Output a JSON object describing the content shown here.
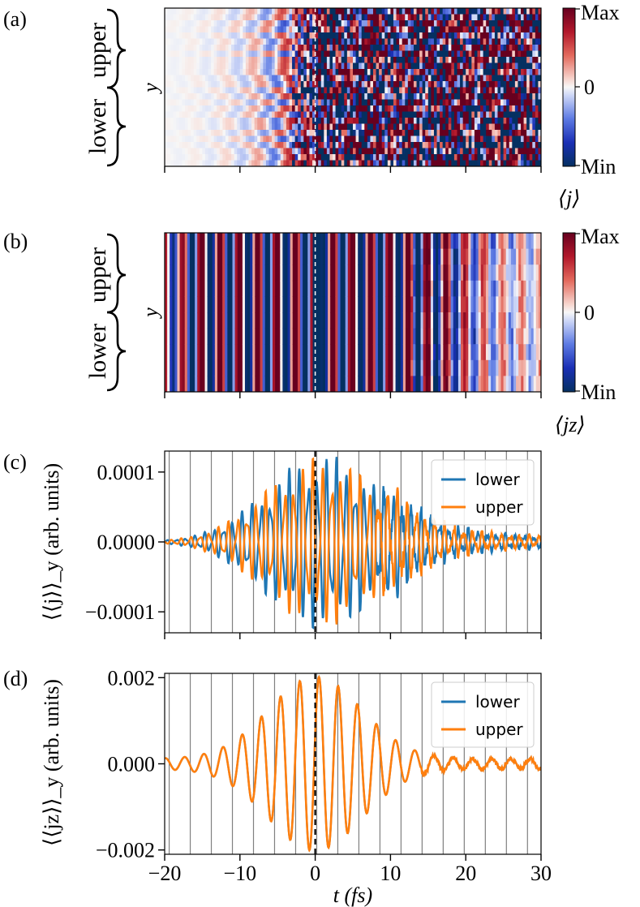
{
  "panel_labels": [
    "(a)",
    "(b)",
    "(c)",
    "(d)"
  ],
  "colors": {
    "lower": "#1f77b4",
    "upper": "#ff7f0e",
    "cmap_max": "#67001f",
    "cmap_mid": "#f7f7f7",
    "cmap_min": "#053061",
    "grid": "#808080"
  },
  "heatmap_a": {
    "ylabel": "y",
    "brace_upper": "upper",
    "brace_lower": "lower",
    "colorbar": {
      "max": "Max",
      "mid": "0",
      "min": "Min",
      "label": "⟨j⟩"
    }
  },
  "heatmap_b": {
    "ylabel": "y",
    "brace_upper": "upper",
    "brace_lower": "lower",
    "colorbar": {
      "max": "Max",
      "mid": "0",
      "min": "Min",
      "label": "⟨jz⟩"
    }
  },
  "chart_data": [
    {
      "type": "heatmap",
      "panel": "(a)",
      "description": "Current density <j> vs time (x) and y-position; weak before t=0, strong random-sign stripes after t=0",
      "xlim": [
        -20,
        30
      ],
      "x_ticks": [
        -20,
        -10,
        0,
        10,
        20,
        30
      ],
      "value_range": [
        "Min",
        "Max"
      ],
      "marker_line_x": 0
    },
    {
      "type": "heatmap",
      "panel": "(b)",
      "description": "Spin current <j^z> vs time and y; uniform vertical stripes oscillating in time, decaying after ~15 fs",
      "xlim": [
        -20,
        30
      ],
      "x_ticks": [
        -20,
        -10,
        0,
        10,
        20,
        30
      ],
      "value_range": [
        "Min",
        "Max"
      ],
      "marker_line_x": 0
    },
    {
      "type": "line",
      "panel": "(c)",
      "ylabel": "⟨⟨j⟩⟩_y (arb. units)",
      "xlim": [
        -20,
        30
      ],
      "ylim": [
        -0.00013,
        0.00013
      ],
      "y_ticks": [
        0.0001,
        0.0,
        -0.0001
      ],
      "y_tick_labels": [
        "0.0001",
        "0.0000",
        "−0.0001"
      ],
      "x_ticks": [
        -20,
        -10,
        0,
        10,
        20,
        30
      ],
      "series": [
        {
          "name": "lower",
          "peak": 0.00012,
          "phase": 0,
          "note": "antiphase oscillation, envelope peak near t=1 fs"
        },
        {
          "name": "upper",
          "peak": 0.00012,
          "phase": 180,
          "note": "mirror of lower"
        }
      ],
      "vertical_grid_x": [
        -19.4,
        -16.6,
        -13.8,
        -11.0,
        -8.2,
        -5.4,
        -2.6,
        0.2,
        3.0,
        5.8,
        8.6,
        11.4,
        14.2,
        17.0,
        19.8,
        22.6,
        25.4,
        28.2
      ],
      "marker_line_x": 0
    },
    {
      "type": "line",
      "panel": "(d)",
      "ylabel": "⟨⟨jz⟩⟩_y (arb. units)",
      "xlabel": "t (fs)",
      "xlim": [
        -20,
        30
      ],
      "ylim": [
        -0.0021,
        0.0021
      ],
      "y_ticks": [
        0.002,
        0.0,
        -0.002
      ],
      "y_tick_labels": [
        "0.002",
        "0.000",
        "−0.002"
      ],
      "x_ticks": [
        -20,
        -10,
        0,
        10,
        20,
        30
      ],
      "x_tick_labels": [
        "−20",
        "−10",
        "0",
        "10",
        "20",
        "30"
      ],
      "series": [
        {
          "name": "lower",
          "peak": 0.0019,
          "note": "identical to upper (hidden beneath)"
        },
        {
          "name": "upper",
          "peak": 0.0019,
          "note": "Gaussian-envelope oscillation, period ~2.5 fs, peaks ±0.002 near t=0"
        }
      ],
      "vertical_grid_x": [
        -19.4,
        -16.6,
        -13.8,
        -11.0,
        -8.2,
        -5.4,
        -2.6,
        0.2,
        3.0,
        5.8,
        8.6,
        11.4,
        14.2,
        17.0,
        19.8,
        22.6,
        25.4,
        28.2
      ],
      "marker_line_x": 0
    }
  ]
}
